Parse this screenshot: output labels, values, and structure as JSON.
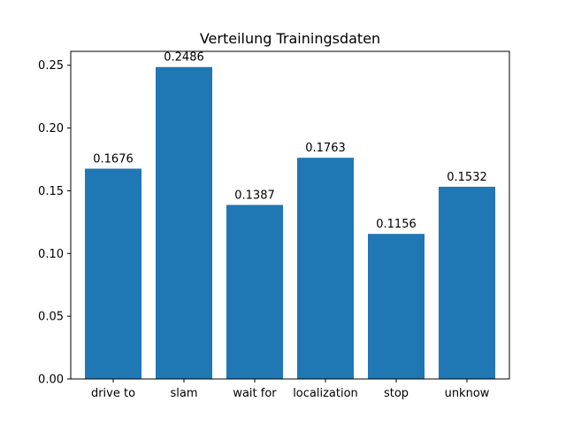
{
  "chart_data": {
    "type": "bar",
    "title": "Verteilung Trainingsdaten",
    "xlabel": "",
    "ylabel": "",
    "categories": [
      "drive to",
      "slam",
      "wait for",
      "localization",
      "stop",
      "unknow"
    ],
    "values": [
      0.1676,
      0.2486,
      0.1387,
      0.1763,
      0.1156,
      0.1532
    ],
    "data_labels": [
      "0.1676",
      "0.2486",
      "0.1387",
      "0.1763",
      "0.1156",
      "0.1532"
    ],
    "ylim": [
      0,
      0.2611
    ],
    "yticks": [
      0.0,
      0.05,
      0.1,
      0.15,
      0.2,
      0.25
    ],
    "ytick_labels": [
      "0.00",
      "0.05",
      "0.10",
      "0.15",
      "0.20",
      "0.25"
    ],
    "bar_color": "#1f77b4",
    "grid": false
  }
}
